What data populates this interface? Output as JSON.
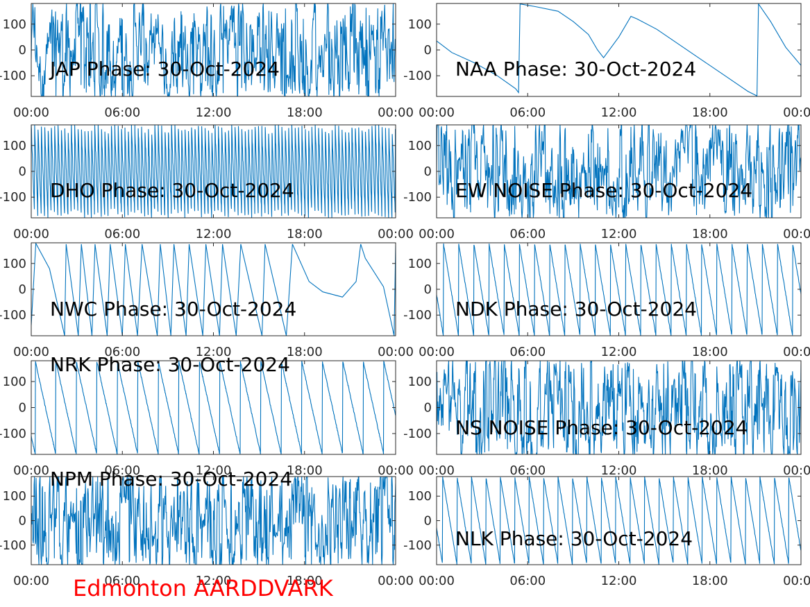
{
  "figure": {
    "footer_label": "Edmonton AARDDVARK",
    "footer_color": "#ff0000",
    "line_color": "#0072bd",
    "axis_color": "#262626"
  },
  "chart_data": [
    {
      "type": "line",
      "title": "JAP Phase: 30-Oct-2024",
      "xticks": [
        "00:00",
        "06:00",
        "12:00",
        "18:00",
        "00:00"
      ],
      "yticks": [
        "100",
        "0",
        "-100"
      ],
      "ylim": [
        -180,
        180
      ],
      "grid": false,
      "pattern": "noise",
      "series": [
        {
          "style": "dense phase noise, full range"
        }
      ]
    },
    {
      "type": "line",
      "title": "DHO Phase: 30-Oct-2024",
      "xticks": [
        "00:00",
        "06:00",
        "12:00",
        "18:00",
        "00:00"
      ],
      "yticks": [
        "100",
        "0",
        "-100"
      ],
      "ylim": [
        -180,
        180
      ],
      "grid": false,
      "pattern": "fastwrap",
      "series": [
        {
          "style": "rapid phase wraps, ~0.25 h period"
        }
      ]
    },
    {
      "type": "line",
      "title": "NWC Phase: 30-Oct-2024",
      "xticks": [
        "00:00",
        "06:00",
        "12:00",
        "18:00",
        "00:00"
      ],
      "yticks": [
        "100",
        "0",
        "-100"
      ],
      "ylim": [
        -180,
        180
      ],
      "grid": false,
      "pattern": "nwc",
      "series": [
        {
          "x": [
            0.0,
            0.3,
            1.2,
            2.2,
            2.3,
            3.1,
            3.3,
            4.0,
            4.2,
            5.0,
            5.2,
            6.0,
            6.2,
            7.0,
            7.3,
            8.3,
            8.5,
            9.2,
            9.4,
            10.2,
            10.4,
            11.3,
            11.5,
            12.4,
            12.6,
            13.5,
            13.8,
            15.2,
            15.4,
            16.8,
            17.2,
            18.3,
            19.2,
            20.5,
            21.4,
            21.7,
            22.0,
            23.2,
            23.9,
            24.0
          ],
          "y": [
            -140,
            178,
            80,
            -180,
            175,
            -180,
            175,
            -180,
            175,
            -180,
            175,
            -180,
            175,
            -180,
            175,
            -180,
            175,
            -180,
            175,
            -180,
            175,
            -180,
            175,
            -180,
            175,
            -180,
            175,
            -180,
            175,
            -180,
            175,
            30,
            -10,
            -30,
            30,
            175,
            120,
            10,
            -180,
            170
          ]
        }
      ]
    },
    {
      "type": "line",
      "title": "NRK Phase: 30-Oct-2024",
      "xticks": [
        "00:00",
        "06:00",
        "12:00",
        "18:00",
        "00:00"
      ],
      "yticks": [
        "100",
        "0",
        "-100"
      ],
      "ylim": [
        -180,
        180
      ],
      "grid": false,
      "pattern": "sawtooth",
      "series": [
        {
          "period_hours": 1.35,
          "start_y": -110
        }
      ]
    },
    {
      "type": "line",
      "title": "NPM Phase: 30-Oct-2024",
      "xticks": [
        "00:00",
        "06:00",
        "12:00",
        "18:00",
        "00:00"
      ],
      "yticks": [
        "100",
        "0",
        "-100"
      ],
      "ylim": [
        -180,
        180
      ],
      "grid": false,
      "pattern": "noise",
      "series": [
        {
          "style": "dense phase noise, full range"
        }
      ]
    },
    {
      "type": "line",
      "title": "NAA Phase: 30-Oct-2024",
      "xticks": [
        "00:00",
        "06:00",
        "12:00",
        "18:00",
        "00:00"
      ],
      "yticks": [
        "100",
        "0",
        "-100"
      ],
      "ylim": [
        -180,
        180
      ],
      "grid": false,
      "pattern": "naa",
      "series": [
        {
          "x": [
            0.0,
            1.0,
            2.5,
            4.0,
            5.2,
            5.4,
            5.5,
            6.5,
            8.0,
            9.0,
            10.0,
            10.6,
            11.0,
            12.0,
            12.8,
            13.2,
            14.5,
            16.0,
            17.5,
            19.0,
            20.5,
            21.1,
            21.2,
            22.0,
            23.0,
            24.0
          ],
          "y": [
            35,
            -10,
            -50,
            -100,
            -150,
            -165,
            178,
            168,
            150,
            110,
            60,
            0,
            -30,
            50,
            130,
            120,
            80,
            20,
            -40,
            -100,
            -160,
            -178,
            178,
            110,
            10,
            -60
          ]
        }
      ]
    },
    {
      "type": "line",
      "title": "EW NOISE Phase: 30-Oct-2024",
      "xticks": [
        "00:00",
        "06:00",
        "12:00",
        "18:00",
        "00:00"
      ],
      "yticks": [
        "100",
        "0",
        "-100"
      ],
      "ylim": [
        -180,
        180
      ],
      "grid": false,
      "pattern": "noise",
      "series": [
        {
          "style": "dense phase noise, full range"
        }
      ]
    },
    {
      "type": "line",
      "title": "NDK Phase: 30-Oct-2024",
      "xticks": [
        "00:00",
        "06:00",
        "12:00",
        "18:00",
        "00:00"
      ],
      "yticks": [
        "100",
        "0",
        "-100"
      ],
      "ylim": [
        -180,
        180
      ],
      "grid": false,
      "pattern": "sawtooth",
      "series": [
        {
          "period_hours": 1.0,
          "start_y": -20
        }
      ]
    },
    {
      "type": "line",
      "title": "NS NOISE Phase: 30-Oct-2024",
      "xticks": [
        "00:00",
        "06:00",
        "12:00",
        "18:00",
        "00:00"
      ],
      "yticks": [
        "100",
        "0",
        "-100"
      ],
      "ylim": [
        -180,
        180
      ],
      "grid": false,
      "pattern": "noise",
      "series": [
        {
          "style": "dense phase noise, full range"
        }
      ]
    },
    {
      "type": "line",
      "title": "NLK Phase: 30-Oct-2024",
      "xticks": [
        "00:00",
        "06:00",
        "12:00",
        "18:00",
        "00:00"
      ],
      "yticks": [
        "100",
        "0",
        "-100"
      ],
      "ylim": [
        -180,
        180
      ],
      "grid": false,
      "pattern": "sawtooth",
      "series": [
        {
          "period_hours": 0.95,
          "start_y": -30
        }
      ]
    }
  ]
}
